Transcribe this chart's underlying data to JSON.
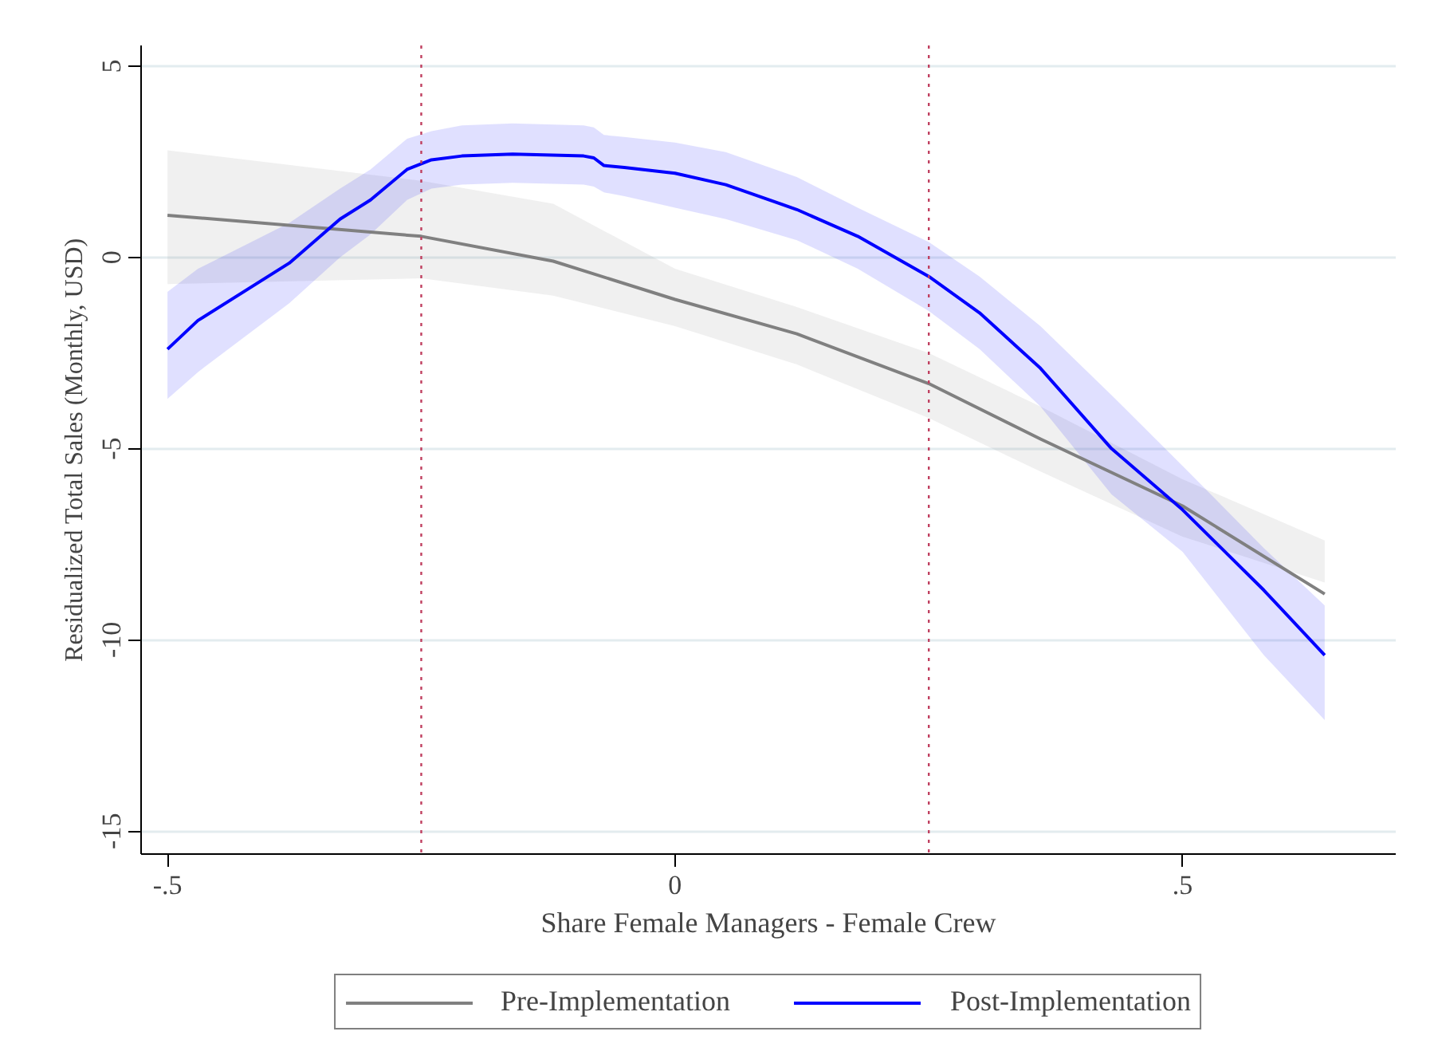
{
  "chart_data": {
    "type": "line",
    "xlabel": "Share Female Managers - Female Crew",
    "ylabel": "Residualized Total Sales (Monthly, USD)",
    "xlim": [
      -0.526,
      0.71
    ],
    "ylim": [
      -15.6,
      5.54
    ],
    "xticks": [
      {
        "value": -0.5,
        "label": "-.5"
      },
      {
        "value": 0,
        "label": "0"
      },
      {
        "value": 0.5,
        "label": ".5"
      }
    ],
    "yticks": [
      -15,
      -10,
      -5,
      0,
      5
    ],
    "grid": "y",
    "legend": "bottom",
    "line_style": "solid",
    "marker": "none",
    "ref_lines": [
      {
        "axis": "x",
        "value": -0.25,
        "label": null,
        "color": "#c04060",
        "line_style": "dotted"
      },
      {
        "axis": "x",
        "value": 0.25,
        "label": null,
        "color": "#c04060",
        "line_style": "dotted"
      }
    ],
    "series": [
      {
        "name": "Pre-Implementation",
        "color": "#808080",
        "x": [
          -0.5,
          -0.25,
          -0.12,
          0,
          0.12,
          0.25,
          0.36,
          0.5,
          0.64
        ],
        "values": [
          1.1,
          0.55,
          -0.1,
          -1.1,
          -2.0,
          -3.3,
          -4.75,
          -6.5,
          -8.8
        ],
        "upper": [
          2.8,
          2.0,
          1.4,
          -0.3,
          -1.3,
          -2.5,
          -3.9,
          -5.8,
          -7.4
        ],
        "lower": [
          -0.7,
          -0.55,
          -1.0,
          -1.8,
          -2.8,
          -4.2,
          -5.6,
          -7.3,
          -8.5
        ]
      },
      {
        "name": "Post-Implementation",
        "color": "#0000ff",
        "x": [
          -0.5,
          -0.47,
          -0.38,
          -0.33,
          -0.3,
          -0.264,
          -0.24,
          -0.21,
          -0.16,
          -0.09,
          -0.08,
          -0.07,
          -0.05,
          0,
          0.05,
          0.12,
          0.18,
          0.25,
          0.3,
          0.36,
          0.43,
          0.5,
          0.58,
          0.64
        ],
        "values": [
          -2.4,
          -1.65,
          -0.15,
          1.0,
          1.5,
          2.3,
          2.55,
          2.65,
          2.7,
          2.65,
          2.6,
          2.4,
          2.35,
          2.2,
          1.9,
          1.25,
          0.55,
          -0.5,
          -1.45,
          -2.9,
          -5.0,
          -6.6,
          -8.7,
          -10.4
        ],
        "upper": [
          -0.9,
          -0.3,
          0.9,
          1.8,
          2.3,
          3.1,
          3.3,
          3.45,
          3.5,
          3.45,
          3.4,
          3.2,
          3.15,
          3.0,
          2.75,
          2.1,
          1.3,
          0.4,
          -0.5,
          -1.8,
          -3.6,
          -5.45,
          -7.6,
          -9.1
        ],
        "lower": [
          -3.7,
          -3.0,
          -1.2,
          0.0,
          0.6,
          1.5,
          1.8,
          1.9,
          1.95,
          1.9,
          1.85,
          1.7,
          1.6,
          1.3,
          1.0,
          0.45,
          -0.3,
          -1.4,
          -2.4,
          -3.9,
          -6.2,
          -7.7,
          -10.4,
          -12.1
        ]
      }
    ]
  }
}
